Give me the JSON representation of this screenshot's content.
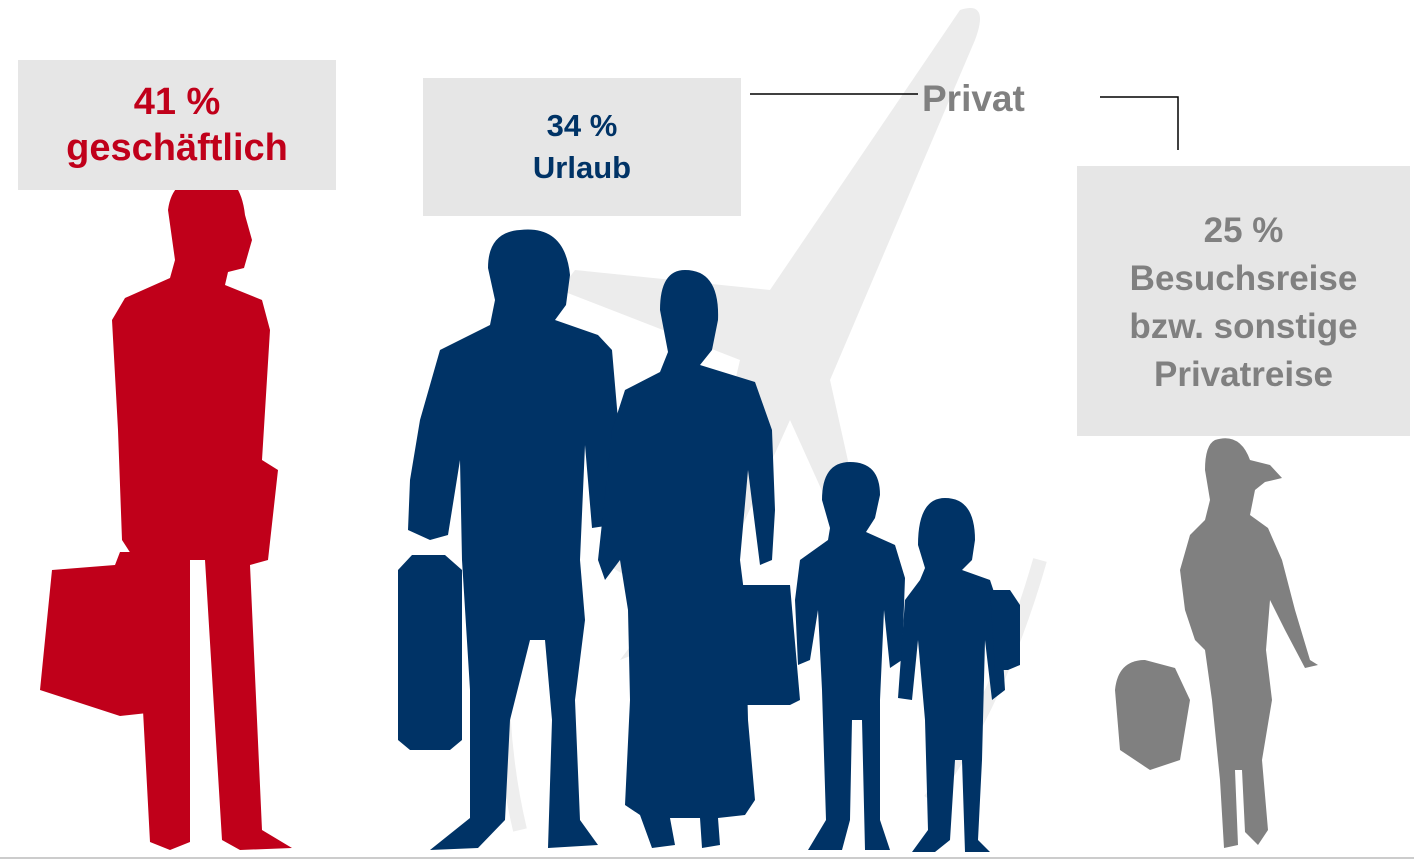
{
  "colors": {
    "business": "#c0001a",
    "vacation": "#003366",
    "visit": "#808080",
    "box_bg": "#e6e6e6",
    "airplane": "#ececec"
  },
  "icons": {
    "background": "airplane-icon",
    "business": "businessman-silhouette-icon",
    "vacation": "family-silhouette-icon",
    "visit": "woman-silhouette-icon"
  },
  "categories": [
    {
      "percent": "41 %",
      "text": [
        "geschäftlich"
      ],
      "value": 41
    },
    {
      "percent": "34 %",
      "text": [
        "Urlaub"
      ],
      "value": 34
    },
    {
      "percent": "25 %",
      "text": [
        "Besuchsreise",
        "bzw. sonstige",
        "Privatreise"
      ],
      "value": 25
    }
  ],
  "private_label": "Privat"
}
